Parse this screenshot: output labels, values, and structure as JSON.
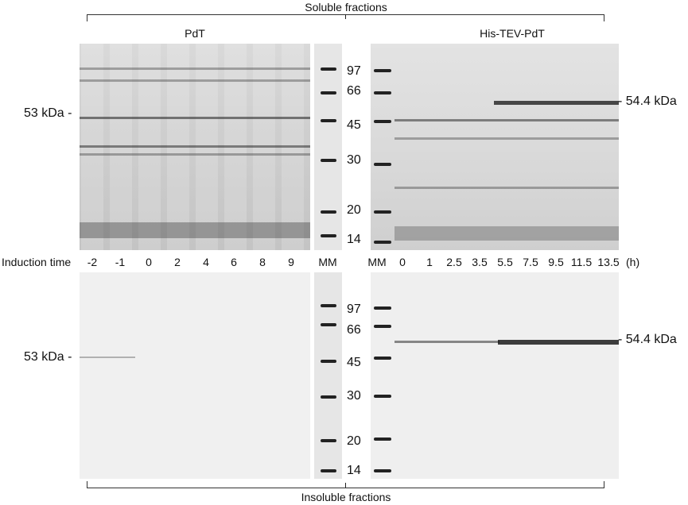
{
  "brackets": {
    "top": "Soluble fractions",
    "bottom": "Insoluble fractions"
  },
  "panels": {
    "left_title": "PdT",
    "right_title": "His-TEV-PdT"
  },
  "markers": [
    "97",
    "66",
    "45",
    "30",
    "20",
    "14"
  ],
  "left_band_label": "53 kDa -",
  "right_band_label": "- 54.4 kDa",
  "induction": {
    "label": "Induction time",
    "left_times": [
      "-2",
      "-1",
      "0",
      "2",
      "4",
      "6",
      "8",
      "9"
    ],
    "mm_left": "MM",
    "mm_right": "MM",
    "right_times": [
      "0",
      "1",
      "2.5",
      "3.5",
      "5.5",
      "7.5",
      "9.5",
      "11.5",
      "13.5"
    ],
    "unit": "(h)"
  }
}
